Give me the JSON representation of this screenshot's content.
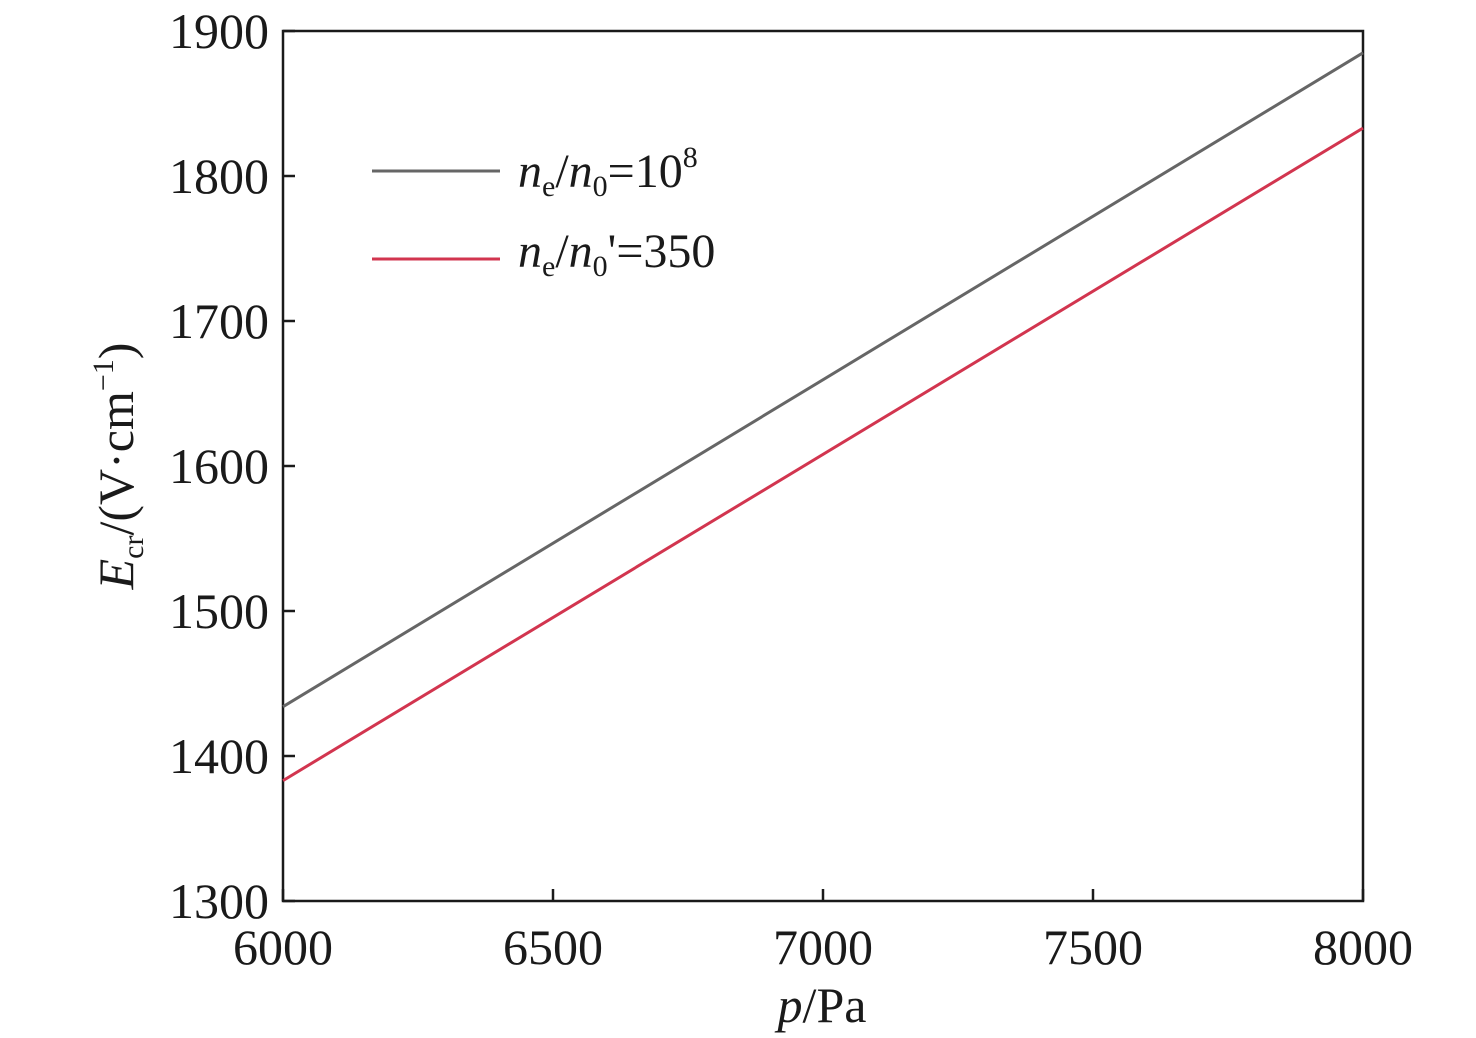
{
  "chart_data": {
    "type": "line",
    "title": "",
    "xlabel": {
      "symbol": "p",
      "unit": "/Pa"
    },
    "ylabel": {
      "symbol": "E",
      "subscript": "cr",
      "unit_prefix": "/(V·cm",
      "unit_exp": "−1",
      "unit_suffix": ")"
    },
    "xlim": [
      6000,
      8000
    ],
    "ylim": [
      1300,
      1900
    ],
    "xticks": [
      6000,
      6500,
      7000,
      7500,
      8000
    ],
    "yticks": [
      1300,
      1400,
      1500,
      1600,
      1700,
      1800,
      1900
    ],
    "grid": false,
    "legend_position": "top-left",
    "series": [
      {
        "key": "s1",
        "legend": {
          "n": "n",
          "sub_e": "e",
          "slash": "/",
          "n2": "n",
          "sub_0": "0",
          "rest": "=10",
          "sup": "8"
        },
        "color": "#666666",
        "x": [
          6000,
          8000
        ],
        "y": [
          1434,
          1885
        ]
      },
      {
        "key": "s2",
        "legend": {
          "n": "n",
          "sub_e": "e",
          "slash": "/",
          "n2": "n",
          "sub_0": "0",
          "rest": "'=350",
          "sup": ""
        },
        "color": "#d2354f",
        "x": [
          6000,
          8000
        ],
        "y": [
          1383,
          1833
        ]
      }
    ]
  }
}
